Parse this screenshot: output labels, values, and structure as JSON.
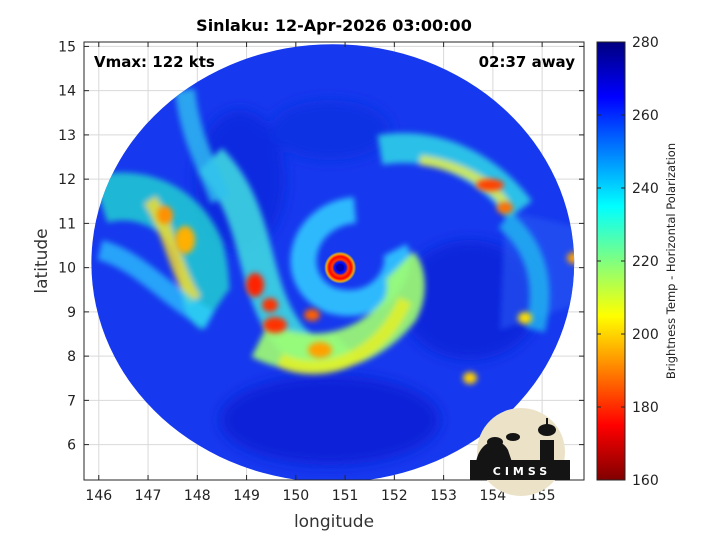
{
  "chart_data": {
    "type": "heatmap",
    "title": "Sinlaku: 12-Apr-2026 03:00:00",
    "annotations": {
      "vmax": "Vmax: 122 kts",
      "time_away": "02:37 away"
    },
    "xlabel": "longitude",
    "ylabel": "latitude",
    "xlim": [
      145.7,
      155.85
    ],
    "ylim": [
      5.2,
      15.1
    ],
    "xticks": [
      146,
      147,
      148,
      149,
      150,
      151,
      152,
      153,
      154,
      155
    ],
    "yticks": [
      6,
      7,
      8,
      9,
      10,
      11,
      12,
      13,
      14,
      15
    ],
    "grid": true,
    "colorbar": {
      "label": "Brightness Temp - Horizontal Polarization",
      "range": [
        160,
        280
      ],
      "ticks": [
        160,
        180,
        200,
        220,
        240,
        260,
        280
      ],
      "colormap": [
        "#800000",
        "#ff0000",
        "#ff8000",
        "#ffff00",
        "#80ff80",
        "#00ffff",
        "#0080ff",
        "#0000ff",
        "#000080"
      ]
    },
    "swath": {
      "center": [
        150.75,
        10.1
      ],
      "radius_lon": 4.9,
      "radius_lat": 4.95,
      "seam_lon_top": 148.4,
      "seam_lon_bottom": 149.7
    },
    "storm_center": {
      "lon": 150.9,
      "lat": 10.0
    },
    "eye_ring_tb": 175,
    "background_tb": 262,
    "logo": {
      "text": "CIMSS"
    }
  }
}
